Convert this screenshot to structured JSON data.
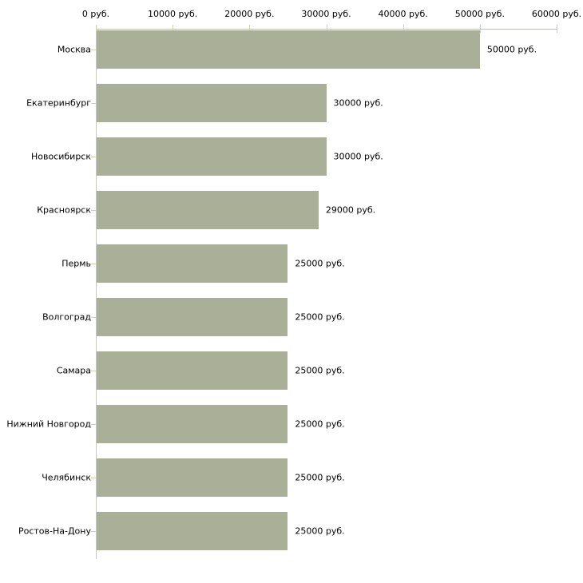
{
  "chart_data": {
    "type": "bar",
    "orientation": "horizontal",
    "title": "",
    "xlabel": "",
    "ylabel": "",
    "unit": "руб.",
    "categories": [
      "Москва",
      "Екатеринбург",
      "Новосибирск",
      "Красноярск",
      "Пермь",
      "Волгоград",
      "Самара",
      "Нижний Новгород",
      "Челябинск",
      "Ростов-На-Дону"
    ],
    "values": [
      50000,
      30000,
      30000,
      29000,
      25000,
      25000,
      25000,
      25000,
      25000,
      25000
    ],
    "value_labels": [
      "50000 руб.",
      "30000 руб.",
      "30000 руб.",
      "29000 руб.",
      "25000 руб.",
      "25000 руб.",
      "25000 руб.",
      "25000 руб.",
      "25000 руб.",
      "25000 руб."
    ],
    "x_ticks": [
      0,
      10000,
      20000,
      30000,
      40000,
      50000,
      60000
    ],
    "x_tick_labels": [
      "0 руб.",
      "10000 руб.",
      "20000 руб.",
      "30000 руб.",
      "40000 руб.",
      "50000 руб.",
      "60000 руб."
    ],
    "xlim": [
      0,
      60000
    ],
    "grid": false,
    "legend": null,
    "bar_color": "#aab097",
    "axis_color": "#bcbdb7",
    "tick_color": "#ced0a8",
    "text_color": "#000000",
    "background_color": "#ffffff"
  }
}
